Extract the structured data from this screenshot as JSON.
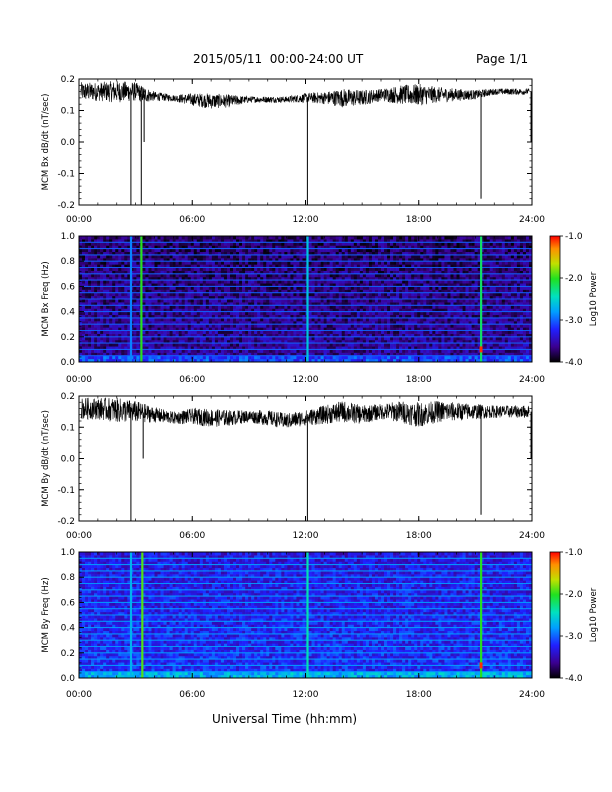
{
  "header": {
    "title": "2015/05/11  00:00-24:00 UT",
    "page": "Page 1/1"
  },
  "xlabel": "Universal Time (hh:mm)",
  "colors": {
    "trace": "#000000",
    "spectrogram_background": "#2b0a7a",
    "colorbar": [
      "#000000",
      "#3b0090",
      "#2020ff",
      "#00a0ff",
      "#00e0c0",
      "#20e020",
      "#c0e000",
      "#ff9000",
      "#ff0000"
    ]
  },
  "chart_data": [
    {
      "id": "bx-dbdt",
      "type": "line",
      "ylabel": "MCM Bx dB/dt (nT/sec)",
      "xlim": [
        0,
        24
      ],
      "ylim": [
        -0.2,
        0.2
      ],
      "x_ticks": [
        "00:00",
        "06:00",
        "12:00",
        "18:00",
        "24:00"
      ],
      "y_ticks": [
        "-0.2",
        "-0.1",
        "0.0",
        "0.1",
        "0.2"
      ],
      "series": [
        {
          "baseline_hours": [
            0,
            1,
            2,
            3,
            3.5,
            4,
            5,
            6,
            7,
            8,
            9,
            10,
            11,
            12,
            13,
            14,
            15,
            16,
            17,
            18,
            19,
            20,
            21,
            22,
            23,
            23.9
          ],
          "baseline_values": [
            0.16,
            0.16,
            0.16,
            0.16,
            0.15,
            0.145,
            0.14,
            0.135,
            0.13,
            0.13,
            0.135,
            0.135,
            0.135,
            0.14,
            0.14,
            0.14,
            0.14,
            0.15,
            0.15,
            0.15,
            0.15,
            0.15,
            0.15,
            0.16,
            0.16,
            0.16
          ],
          "noise_amplitude_nT_per_sec": [
            0.03,
            0.03,
            0.035,
            0.03,
            0.025,
            0.015,
            0.01,
            0.02,
            0.025,
            0.02,
            0.01,
            0.01,
            0.01,
            0.015,
            0.02,
            0.03,
            0.025,
            0.02,
            0.03,
            0.035,
            0.025,
            0.02,
            0.015,
            0.01,
            0.01,
            0.01
          ],
          "spikes": [
            {
              "hour": 2.75,
              "value": -0.2
            },
            {
              "hour": 3.3,
              "value": -0.2
            },
            {
              "hour": 3.45,
              "value": 0.0
            },
            {
              "hour": 12.1,
              "value": -0.2
            },
            {
              "hour": 21.3,
              "value": -0.18
            },
            {
              "hour": 23.95,
              "value": 0.0
            }
          ]
        }
      ]
    },
    {
      "id": "bx-spec",
      "type": "heatmap",
      "ylabel": "MCM Bx Freq (Hz)",
      "xlim": [
        0,
        24
      ],
      "ylim": [
        0,
        1.0
      ],
      "x_ticks": [
        "00:00",
        "06:00",
        "12:00",
        "18:00",
        "24:00"
      ],
      "y_ticks": [
        "0.0",
        "0.2",
        "0.4",
        "0.6",
        "0.8",
        "1.0"
      ],
      "colorbar_label": "Log10 Power",
      "colorbar_ticks": [
        "-4.0",
        "-3.0",
        "-2.0",
        "-1.0"
      ],
      "colorbar_range": [
        -4.0,
        -1.0
      ],
      "background_log_power": -3.6,
      "harmonic_freqs_hz": [
        0.05,
        0.1,
        0.15,
        0.2,
        0.25,
        0.3,
        0.35,
        0.4,
        0.45,
        0.5,
        0.55,
        0.6,
        0.65,
        0.7,
        0.75,
        0.8,
        0.85,
        0.9,
        0.95
      ],
      "harmonic_log_power": -3.0,
      "vertical_events": [
        {
          "hour": 3.3,
          "log_power": -2.0
        },
        {
          "hour": 12.1,
          "log_power": -2.6
        },
        {
          "hour": 21.3,
          "log_power": -2.2
        },
        {
          "hour": 2.75,
          "log_power": -2.9
        }
      ],
      "hot_spots": [
        {
          "hour": 21.3,
          "freq": 0.1,
          "log_power": -1.1
        }
      ]
    },
    {
      "id": "by-dbdt",
      "type": "line",
      "ylabel": "MCM By dB/dt (nT/sec)",
      "xlim": [
        0,
        24
      ],
      "ylim": [
        -0.2,
        0.2
      ],
      "x_ticks": [
        "00:00",
        "06:00",
        "12:00",
        "18:00",
        "24:00"
      ],
      "y_ticks": [
        "-0.2",
        "-0.1",
        "0.0",
        "0.1",
        "0.2"
      ],
      "series": [
        {
          "baseline_hours": [
            0,
            1,
            2,
            3,
            3.5,
            4,
            5,
            6,
            7,
            8,
            9,
            10,
            11,
            12,
            13,
            14,
            15,
            16,
            17,
            18,
            19,
            20,
            21,
            22,
            23,
            23.9
          ],
          "baseline_values": [
            0.16,
            0.16,
            0.155,
            0.15,
            0.145,
            0.14,
            0.13,
            0.135,
            0.13,
            0.13,
            0.135,
            0.13,
            0.12,
            0.13,
            0.14,
            0.15,
            0.14,
            0.15,
            0.15,
            0.14,
            0.15,
            0.15,
            0.15,
            0.15,
            0.15,
            0.15
          ],
          "noise_amplitude_nT_per_sec": [
            0.035,
            0.035,
            0.04,
            0.035,
            0.03,
            0.025,
            0.02,
            0.025,
            0.03,
            0.025,
            0.02,
            0.025,
            0.025,
            0.025,
            0.03,
            0.035,
            0.03,
            0.025,
            0.035,
            0.04,
            0.035,
            0.03,
            0.025,
            0.02,
            0.02,
            0.02
          ],
          "spikes": [
            {
              "hour": 2.75,
              "value": -0.2
            },
            {
              "hour": 3.4,
              "value": 0.0
            },
            {
              "hour": 12.1,
              "value": -0.2
            },
            {
              "hour": 21.3,
              "value": -0.18
            },
            {
              "hour": 23.95,
              "value": 0.0
            }
          ]
        }
      ]
    },
    {
      "id": "by-spec",
      "type": "heatmap",
      "ylabel": "MCM By Freq (Hz)",
      "xlim": [
        0,
        24
      ],
      "ylim": [
        0,
        1.0
      ],
      "x_ticks": [
        "00:00",
        "06:00",
        "12:00",
        "18:00",
        "24:00"
      ],
      "y_ticks": [
        "0.0",
        "0.2",
        "0.4",
        "0.6",
        "0.8",
        "1.0"
      ],
      "colorbar_label": "Log10 Power",
      "colorbar_ticks": [
        "-4.0",
        "-3.0",
        "-2.0",
        "-1.0"
      ],
      "colorbar_range": [
        -4.0,
        -1.0
      ],
      "background_log_power": -3.2,
      "harmonic_freqs_hz": [
        0.05,
        0.1,
        0.15,
        0.2,
        0.25,
        0.3,
        0.35,
        0.4,
        0.45,
        0.5,
        0.55,
        0.6,
        0.65,
        0.7,
        0.75,
        0.8,
        0.85,
        0.9,
        0.95
      ],
      "harmonic_log_power": -2.8,
      "vertical_events": [
        {
          "hour": 3.35,
          "log_power": -1.9
        },
        {
          "hour": 12.1,
          "log_power": -2.4
        },
        {
          "hour": 21.3,
          "log_power": -2.0
        },
        {
          "hour": 2.75,
          "log_power": -2.7
        }
      ],
      "hot_spots": [
        {
          "hour": 21.3,
          "freq": 0.1,
          "log_power": -1.1
        }
      ]
    }
  ]
}
